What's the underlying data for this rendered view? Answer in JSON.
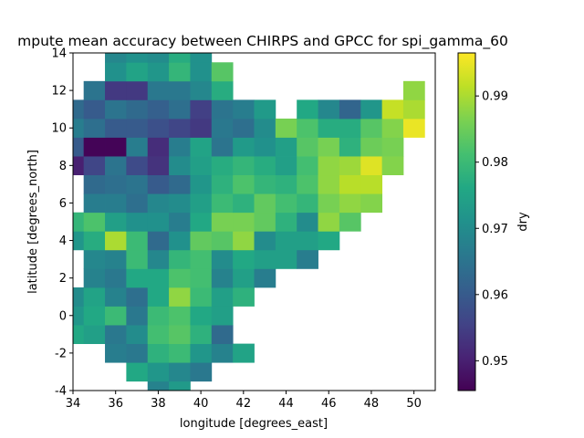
{
  "chart_data": {
    "type": "heatmap",
    "title": "mpute mean accuracy between CHIRPS and GPCC for spi_gamma_60",
    "xlabel": "longitude [degrees_east]",
    "ylabel": "latitude [degrees_north]",
    "colorbar_label": "dry",
    "xlim": [
      34,
      51
    ],
    "ylim": [
      -4,
      14
    ],
    "cell_size": 1,
    "x_ticks": [
      "34",
      "36",
      "38",
      "40",
      "42",
      "44",
      "46",
      "48",
      "50"
    ],
    "y_ticks": [
      "-4",
      "-2",
      "0",
      "2",
      "4",
      "6",
      "8",
      "10",
      "12",
      "14"
    ],
    "colorbar_range": [
      0.9455,
      0.9965
    ],
    "colorbar_ticks": [
      "0.95",
      "0.96",
      "0.97",
      "0.98",
      "0.99"
    ],
    "colormap": "viridis",
    "cells": [
      [
        38,
        -4,
        0.968
      ],
      [
        39,
        -4,
        0.973
      ],
      [
        37,
        -3,
        0.976
      ],
      [
        38,
        -3,
        0.972
      ],
      [
        39,
        -3,
        0.969
      ],
      [
        40,
        -3,
        0.966
      ],
      [
        36,
        -2,
        0.967
      ],
      [
        37,
        -2,
        0.966
      ],
      [
        38,
        -2,
        0.978
      ],
      [
        39,
        -2,
        0.98
      ],
      [
        40,
        -2,
        0.972
      ],
      [
        41,
        -2,
        0.968
      ],
      [
        42,
        -2,
        0.975
      ],
      [
        34,
        -1,
        0.976
      ],
      [
        35,
        -1,
        0.974
      ],
      [
        36,
        -1,
        0.966
      ],
      [
        37,
        -1,
        0.97
      ],
      [
        38,
        -1,
        0.981
      ],
      [
        39,
        -1,
        0.983
      ],
      [
        40,
        -1,
        0.978
      ],
      [
        41,
        -1,
        0.963
      ],
      [
        34,
        0,
        0.972
      ],
      [
        35,
        0,
        0.976
      ],
      [
        36,
        0,
        0.98
      ],
      [
        37,
        0,
        0.966
      ],
      [
        38,
        0,
        0.98
      ],
      [
        39,
        0,
        0.982
      ],
      [
        40,
        0,
        0.976
      ],
      [
        41,
        0,
        0.974
      ],
      [
        34,
        1,
        0.97
      ],
      [
        35,
        1,
        0.975
      ],
      [
        36,
        1,
        0.968
      ],
      [
        37,
        1,
        0.964
      ],
      [
        38,
        1,
        0.976
      ],
      [
        39,
        1,
        0.988
      ],
      [
        40,
        1,
        0.98
      ],
      [
        41,
        1,
        0.974
      ],
      [
        42,
        1,
        0.978
      ],
      [
        35,
        2,
        0.968
      ],
      [
        36,
        2,
        0.966
      ],
      [
        37,
        2,
        0.976
      ],
      [
        38,
        2,
        0.976
      ],
      [
        39,
        2,
        0.982
      ],
      [
        40,
        2,
        0.981
      ],
      [
        41,
        2,
        0.968
      ],
      [
        42,
        2,
        0.974
      ],
      [
        43,
        2,
        0.967
      ],
      [
        35,
        3,
        0.969
      ],
      [
        36,
        3,
        0.968
      ],
      [
        37,
        3,
        0.98
      ],
      [
        38,
        3,
        0.969
      ],
      [
        39,
        3,
        0.979
      ],
      [
        40,
        3,
        0.981
      ],
      [
        41,
        3,
        0.97
      ],
      [
        42,
        3,
        0.976
      ],
      [
        43,
        3,
        0.974
      ],
      [
        44,
        3,
        0.974
      ],
      [
        45,
        3,
        0.967
      ],
      [
        34,
        4,
        0.972
      ],
      [
        35,
        4,
        0.977
      ],
      [
        36,
        4,
        0.99
      ],
      [
        37,
        4,
        0.98
      ],
      [
        38,
        4,
        0.963
      ],
      [
        39,
        4,
        0.971
      ],
      [
        40,
        4,
        0.984
      ],
      [
        41,
        4,
        0.983
      ],
      [
        42,
        4,
        0.988
      ],
      [
        43,
        4,
        0.97
      ],
      [
        44,
        4,
        0.974
      ],
      [
        45,
        4,
        0.974
      ],
      [
        46,
        4,
        0.976
      ],
      [
        34,
        5,
        0.979
      ],
      [
        35,
        5,
        0.982
      ],
      [
        36,
        5,
        0.974
      ],
      [
        37,
        5,
        0.971
      ],
      [
        38,
        5,
        0.971
      ],
      [
        39,
        5,
        0.967
      ],
      [
        40,
        5,
        0.976
      ],
      [
        41,
        5,
        0.986
      ],
      [
        42,
        5,
        0.986
      ],
      [
        43,
        5,
        0.984
      ],
      [
        44,
        5,
        0.978
      ],
      [
        45,
        5,
        0.97
      ],
      [
        46,
        5,
        0.988
      ],
      [
        47,
        5,
        0.983
      ],
      [
        35,
        6,
        0.967
      ],
      [
        36,
        6,
        0.967
      ],
      [
        37,
        6,
        0.964
      ],
      [
        38,
        6,
        0.969
      ],
      [
        39,
        6,
        0.97
      ],
      [
        40,
        6,
        0.974
      ],
      [
        41,
        6,
        0.98
      ],
      [
        42,
        6,
        0.978
      ],
      [
        43,
        6,
        0.984
      ],
      [
        44,
        6,
        0.981
      ],
      [
        45,
        6,
        0.979
      ],
      [
        46,
        6,
        0.986
      ],
      [
        47,
        6,
        0.988
      ],
      [
        48,
        6,
        0.987
      ],
      [
        35,
        7,
        0.963
      ],
      [
        36,
        7,
        0.964
      ],
      [
        37,
        7,
        0.965
      ],
      [
        38,
        7,
        0.96
      ],
      [
        39,
        7,
        0.963
      ],
      [
        40,
        7,
        0.972
      ],
      [
        41,
        7,
        0.978
      ],
      [
        42,
        7,
        0.982
      ],
      [
        43,
        7,
        0.979
      ],
      [
        44,
        7,
        0.978
      ],
      [
        45,
        7,
        0.982
      ],
      [
        46,
        7,
        0.988
      ],
      [
        47,
        7,
        0.991
      ],
      [
        48,
        7,
        0.991
      ],
      [
        34,
        8,
        0.95
      ],
      [
        35,
        8,
        0.956
      ],
      [
        36,
        8,
        0.965
      ],
      [
        37,
        8,
        0.957
      ],
      [
        38,
        8,
        0.953
      ],
      [
        39,
        8,
        0.97
      ],
      [
        40,
        8,
        0.974
      ],
      [
        41,
        8,
        0.977
      ],
      [
        42,
        8,
        0.979
      ],
      [
        43,
        8,
        0.977
      ],
      [
        44,
        8,
        0.974
      ],
      [
        45,
        8,
        0.981
      ],
      [
        46,
        8,
        0.988
      ],
      [
        47,
        8,
        0.989
      ],
      [
        48,
        8,
        0.994
      ],
      [
        49,
        8,
        0.987
      ],
      [
        34,
        9,
        0.96
      ],
      [
        35,
        9,
        0.946
      ],
      [
        36,
        9,
        0.946
      ],
      [
        37,
        9,
        0.967
      ],
      [
        38,
        9,
        0.952
      ],
      [
        39,
        9,
        0.967
      ],
      [
        40,
        9,
        0.975
      ],
      [
        41,
        9,
        0.965
      ],
      [
        42,
        9,
        0.973
      ],
      [
        43,
        9,
        0.971
      ],
      [
        44,
        9,
        0.974
      ],
      [
        45,
        9,
        0.983
      ],
      [
        46,
        9,
        0.986
      ],
      [
        47,
        9,
        0.978
      ],
      [
        48,
        9,
        0.985
      ],
      [
        49,
        9,
        0.986
      ],
      [
        34,
        10,
        0.967
      ],
      [
        35,
        10,
        0.964
      ],
      [
        36,
        10,
        0.96
      ],
      [
        37,
        10,
        0.96
      ],
      [
        38,
        10,
        0.958
      ],
      [
        39,
        10,
        0.956
      ],
      [
        40,
        10,
        0.954
      ],
      [
        41,
        10,
        0.966
      ],
      [
        42,
        10,
        0.964
      ],
      [
        43,
        10,
        0.97
      ],
      [
        44,
        10,
        0.986
      ],
      [
        45,
        10,
        0.982
      ],
      [
        46,
        10,
        0.977
      ],
      [
        47,
        10,
        0.977
      ],
      [
        48,
        10,
        0.983
      ],
      [
        49,
        10,
        0.987
      ],
      [
        50,
        10,
        0.995
      ],
      [
        34,
        11,
        0.963
      ],
      [
        35,
        11,
        0.96
      ],
      [
        36,
        11,
        0.965
      ],
      [
        37,
        11,
        0.963
      ],
      [
        38,
        11,
        0.961
      ],
      [
        39,
        11,
        0.964
      ],
      [
        40,
        11,
        0.955
      ],
      [
        41,
        11,
        0.965
      ],
      [
        42,
        11,
        0.967
      ],
      [
        43,
        11,
        0.973
      ],
      [
        45,
        11,
        0.976
      ],
      [
        46,
        11,
        0.969
      ],
      [
        47,
        11,
        0.962
      ],
      [
        48,
        11,
        0.972
      ],
      [
        49,
        11,
        0.992
      ],
      [
        50,
        11,
        0.99
      ],
      [
        35,
        12,
        0.965
      ],
      [
        36,
        12,
        0.954
      ],
      [
        37,
        12,
        0.954
      ],
      [
        38,
        12,
        0.966
      ],
      [
        39,
        12,
        0.966
      ],
      [
        40,
        12,
        0.969
      ],
      [
        41,
        12,
        0.977
      ],
      [
        50,
        12,
        0.988
      ],
      [
        36,
        13,
        0.971
      ],
      [
        37,
        13,
        0.975
      ],
      [
        38,
        13,
        0.972
      ],
      [
        39,
        13,
        0.979
      ],
      [
        40,
        13,
        0.971
      ],
      [
        41,
        13,
        0.983
      ],
      [
        36,
        14,
        0.969
      ],
      [
        37,
        14,
        0.971
      ],
      [
        38,
        14,
        0.97
      ],
      [
        39,
        14,
        0.977
      ],
      [
        40,
        14,
        0.971
      ]
    ]
  }
}
